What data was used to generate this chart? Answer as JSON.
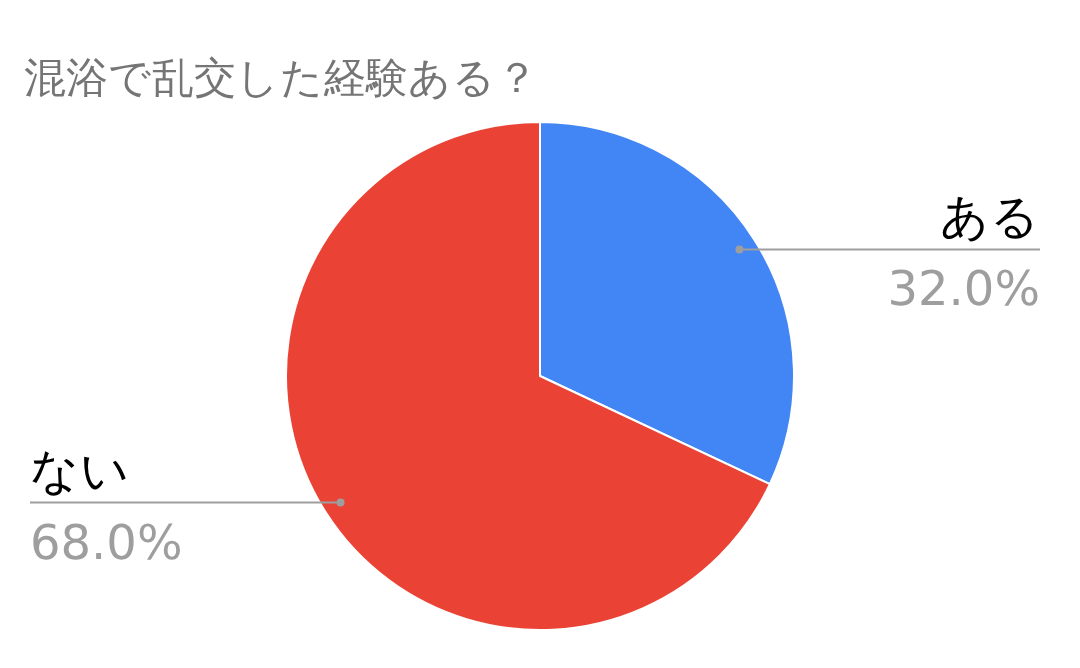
{
  "chart_data": {
    "type": "pie",
    "title": "混浴で乱交した経験ある？",
    "categories": [
      "ある",
      "ない"
    ],
    "values": [
      32.0,
      68.0
    ],
    "colors": [
      "#4285f4",
      "#ea4335"
    ],
    "value_labels": [
      "32.0%",
      "68.0%"
    ]
  }
}
